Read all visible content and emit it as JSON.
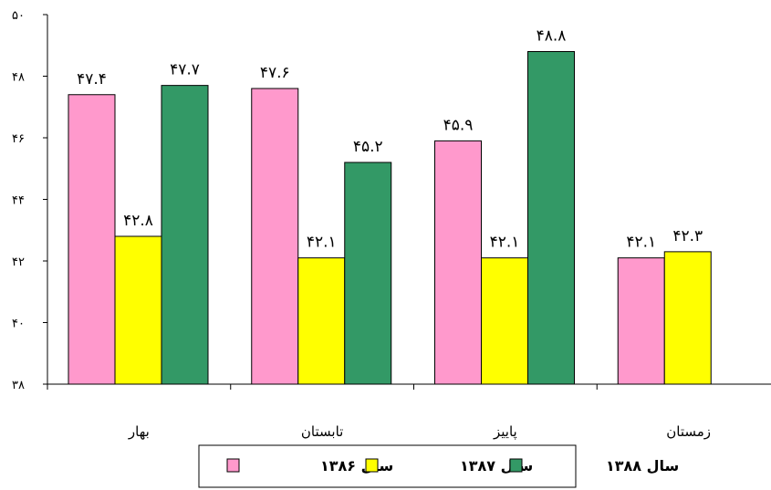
{
  "chart_data": {
    "type": "bar",
    "categories": [
      "بهار",
      "تابستان",
      "پاییز",
      "زمستان"
    ],
    "series": [
      {
        "name": "سال ۱۳۸۶",
        "color": "#ff99cc",
        "values": [
          47.4,
          47.6,
          45.9,
          42.1
        ],
        "labels": [
          "۴۷.۴",
          "۴۷.۶",
          "۴۵.۹",
          "۴۲.۱"
        ]
      },
      {
        "name": "سال ۱۳۸۷",
        "color": "#ffff00",
        "values": [
          42.8,
          42.1,
          42.1,
          42.3
        ],
        "labels": [
          "۴۲.۸",
          "۴۲.۱",
          "۴۲.۱",
          "۴۲.۳"
        ]
      },
      {
        "name": "سال ۱۳۸۸",
        "color": "#339966",
        "values": [
          47.7,
          45.2,
          48.8,
          null
        ],
        "labels": [
          "۴۷.۷",
          "۴۵.۲",
          "۴۸.۸",
          ""
        ]
      }
    ],
    "ylim": [
      38,
      50
    ],
    "yticks": [
      38,
      40,
      42,
      44,
      46,
      48,
      50
    ],
    "ytick_labels": [
      "۳۸",
      "۴۰",
      "۴۲",
      "۴۴",
      "۴۶",
      "۴۸",
      "۵۰"
    ],
    "title": "",
    "xlabel": "",
    "ylabel": "",
    "grid": false,
    "legend_position": "bottom"
  }
}
